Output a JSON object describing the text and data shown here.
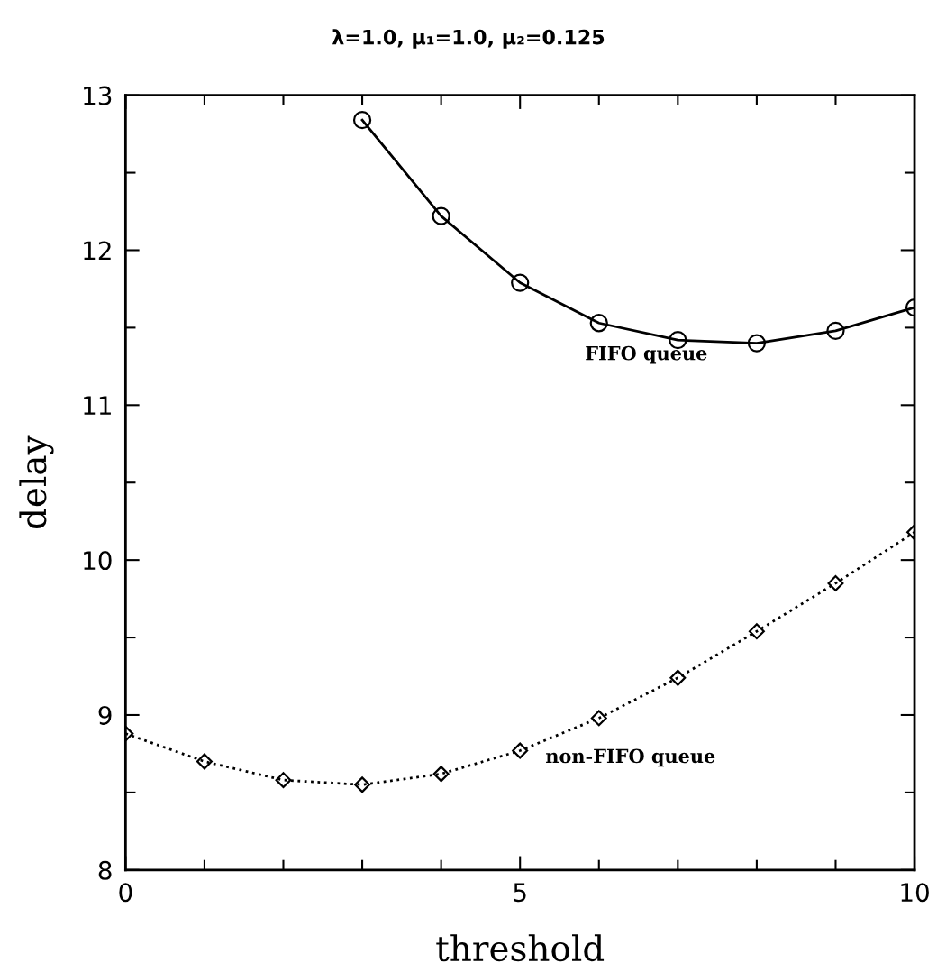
{
  "chart_data": {
    "type": "line",
    "title": "λ=1.0, μ₁=1.0, μ₂=0.125",
    "xlabel": "threshold",
    "ylabel": "delay",
    "xlim": [
      0,
      10
    ],
    "xticks": [
      0,
      {
        "value": 1,
        "label": null
      },
      {
        "value": 2,
        "label": null
      },
      {
        "value": 3,
        "label": null
      },
      {
        "value": 4,
        "label": null
      },
      5,
      {
        "value": 6,
        "label": null
      },
      {
        "value": 7,
        "label": null
      },
      {
        "value": 8,
        "label": null
      },
      {
        "value": 9,
        "label": null
      },
      10
    ],
    "ylim": [
      8,
      13
    ],
    "yticks": [
      8,
      {
        "value": 8.5,
        "label": null
      },
      9,
      {
        "value": 9.5,
        "label": null
      },
      10,
      {
        "value": 10.5,
        "label": null
      },
      11,
      {
        "value": 11.5,
        "label": null
      },
      12,
      {
        "value": 12.5,
        "label": null
      },
      13
    ],
    "grid": false,
    "legend": false,
    "series": [
      {
        "color": "#000000",
        "marker": "circle",
        "line_style": "solid",
        "x": [
          3,
          4,
          5,
          6,
          7,
          8,
          9,
          10
        ],
        "values": [
          12.84,
          12.22,
          11.79,
          11.53,
          11.42,
          11.4,
          11.48,
          11.63
        ]
      },
      {
        "color": "#000000",
        "marker": "diamond",
        "line_style": "dotted",
        "x": [
          0,
          1,
          2,
          3,
          4,
          5,
          6,
          7,
          8,
          9,
          10
        ],
        "values": [
          8.88,
          8.7,
          8.58,
          8.55,
          8.62,
          8.77,
          8.98,
          9.24,
          9.54,
          9.85,
          10.18
        ]
      }
    ],
    "annotations": [
      "FIFO queue",
      "non-FIFO queue"
    ]
  }
}
